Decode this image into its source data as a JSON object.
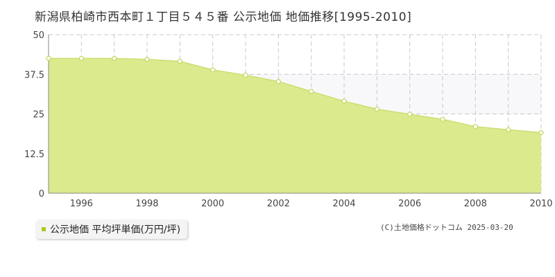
{
  "chart_data": {
    "type": "area",
    "title": "新潟県柏崎市西本町１丁目５４５番 公示地価 地価推移[1995-2010]",
    "x": [
      1995,
      1996,
      1997,
      1998,
      1999,
      2000,
      2001,
      2002,
      2003,
      2004,
      2005,
      2006,
      2007,
      2008,
      2009,
      2010
    ],
    "series": [
      {
        "name": "公示地価 平均坪単価(万円/坪)",
        "values": [
          42.5,
          42.5,
          42.5,
          42.2,
          41.6,
          38.9,
          37.2,
          35.2,
          32.1,
          29.0,
          26.5,
          24.9,
          23.3,
          21.0,
          20.0,
          19.1
        ]
      }
    ],
    "xticks": [
      "1996",
      "1998",
      "2000",
      "2002",
      "2004",
      "2006",
      "2008",
      "2010"
    ],
    "yticks": [
      "0",
      "12.5",
      "25",
      "37.5",
      "50"
    ],
    "xlim": [
      1995,
      2010
    ],
    "ylim": [
      0,
      50
    ],
    "grid": true,
    "legend_position": "bottom-left",
    "colors": {
      "fill": "#dcea8e",
      "line": "#c8e070",
      "marker": "#c0d860",
      "swatch": "#a8cc1c"
    }
  },
  "footer": {
    "copyright": "(C)土地価格ドットコム 2025-03-20"
  }
}
